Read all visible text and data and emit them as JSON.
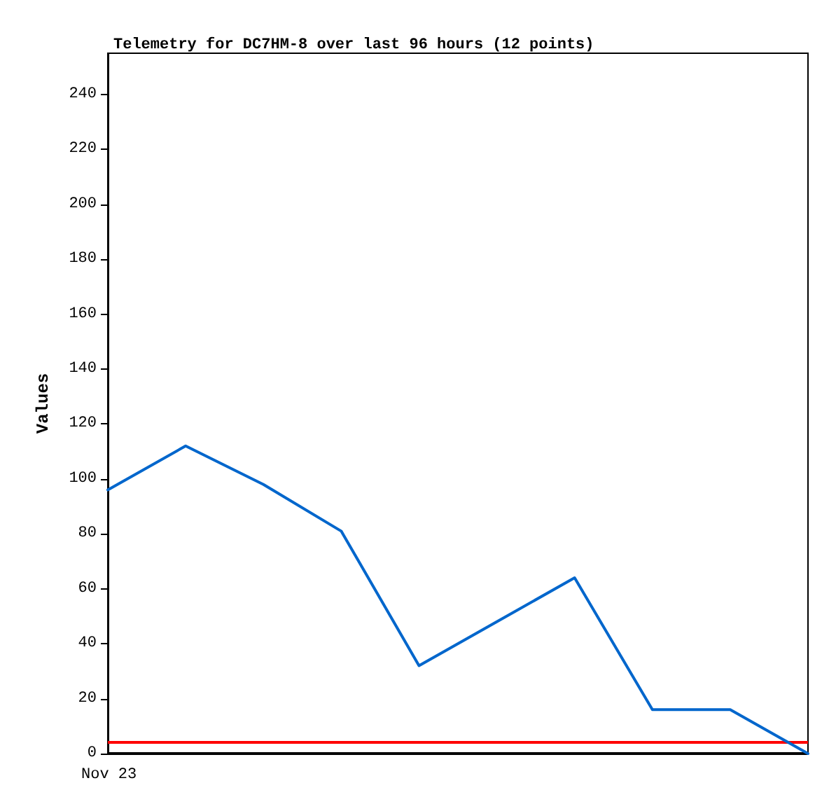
{
  "chart_data": {
    "type": "line",
    "title": "Telemetry for DC7HM-8 over last 96 hours (12 points)",
    "ylabel": "Values",
    "annotations": [
      "Nov 23"
    ],
    "categories": [
      null,
      null,
      null,
      null,
      null,
      null,
      null,
      null,
      null,
      null
    ],
    "ylim": [
      0,
      255
    ],
    "yticks": [
      0,
      20,
      40,
      60,
      80,
      100,
      120,
      140,
      160,
      180,
      200,
      220,
      240
    ],
    "grid": false,
    "marker": "none",
    "line_style": "solid",
    "series": [
      {
        "color": "#0066cc",
        "values": [
          96,
          112,
          98,
          81,
          32,
          48,
          64,
          16,
          16,
          0
        ]
      }
    ],
    "ref_lines": [
      {
        "axis": "y",
        "value": 4,
        "color": "#ff0000"
      },
      {
        "axis": "y",
        "value": 0,
        "color": "#000000"
      }
    ]
  }
}
